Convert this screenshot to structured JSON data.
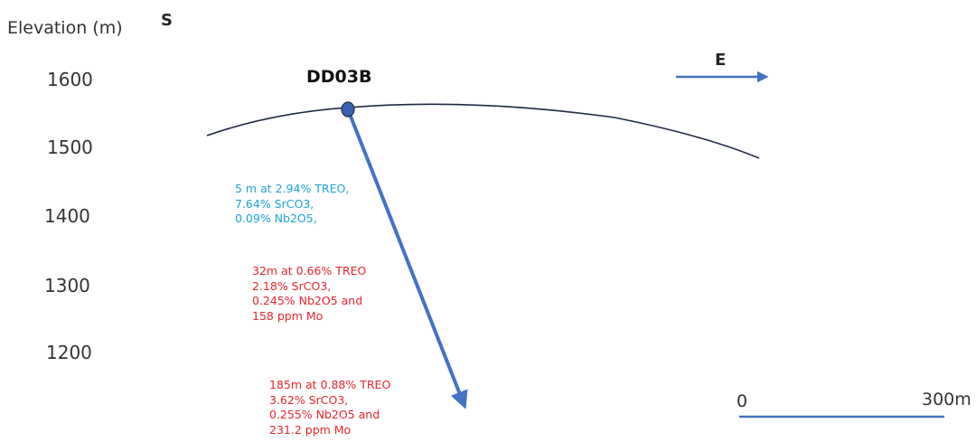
{
  "axis_title": "Elevation (m)",
  "elevation_ticks": [
    "1600",
    "1500",
    "1400",
    "1300",
    "1200"
  ],
  "compass": {
    "south": "S",
    "east": "E"
  },
  "drillhole": {
    "name": "DD03B"
  },
  "intercepts": [
    {
      "lines": [
        "5 m at 2.94% TREO,",
        "7.64% SrCO3,",
        "0.09% Nb2O5,"
      ],
      "color": "#1aa3d9"
    },
    {
      "lines": [
        "32m at 0.66% TREO",
        "2.18% SrCO3,",
        "0.245% Nb2O5 and",
        "158 ppm Mo"
      ],
      "color": "#e8262b"
    },
    {
      "lines": [
        "185m at 0.88% TREO",
        "3.62% SrCO3,",
        "0.255% Nb2O5 and",
        "231.2 ppm Mo"
      ],
      "color": "#e8262b"
    }
  ],
  "scale_bar": {
    "start_label": "0",
    "end_label": "300m"
  },
  "colors": {
    "drill_trace": "#4472c4",
    "collar_fill": "#3a62b0",
    "topography": "#1f2a44",
    "arrow": "#4472c4",
    "scale_bar": "#4472c4"
  }
}
